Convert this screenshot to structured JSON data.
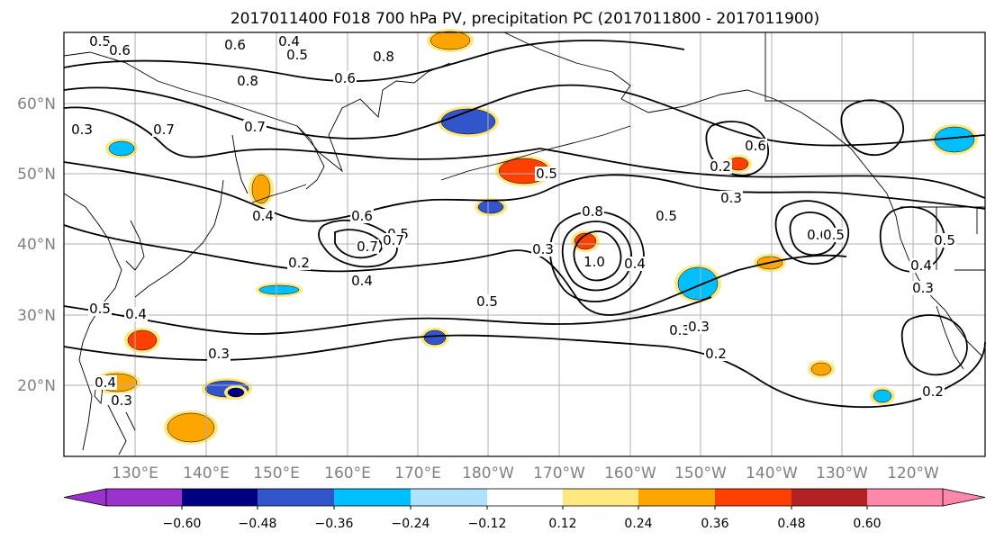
{
  "title": "2017011400 F018 700 hPa PV, precipitation PC (2017011800 - 2017011900)",
  "lat_labels": [
    "60°N",
    "50°N",
    "40°N",
    "30°N",
    "20°N"
  ],
  "lon_labels": [
    "130°E",
    "140°E",
    "150°E",
    "160°E",
    "170°E",
    "180°W",
    "170°W",
    "160°W",
    "150°W",
    "140°W",
    "130°W",
    "120°W"
  ],
  "colorbar": {
    "colors": [
      "#9933cc",
      "#000080",
      "#3355cc",
      "#00bfff",
      "#aee2ff",
      "#ffffff",
      "#ffe880",
      "#ffa500",
      "#ff4000",
      "#b22222",
      "#ff88aa"
    ],
    "tick_labels": [
      "−0.60",
      "−0.48",
      "−0.36",
      "−0.24",
      "−0.12",
      "0.12",
      "0.24",
      "0.36",
      "0.48",
      "0.60"
    ]
  },
  "contour_labels": [
    "0.5",
    "0.6",
    "0.6",
    "0.4",
    "0.5",
    "0.8",
    "0.6",
    "0.8",
    "0.7",
    "0.3",
    "0.7",
    "0.4",
    "0.6",
    "0.5",
    "0.7",
    "0.7",
    "0.3",
    "0.2",
    "0.4",
    "0.5",
    "0.4",
    "0.3",
    "0.8",
    "1.0",
    "0.4",
    "0.5",
    "0.3",
    "0.2",
    "0.3",
    "0.6",
    "0.5",
    "0.6",
    "0.5",
    "0.4",
    "0.3",
    "0.2",
    "0.5",
    "0.4",
    "0.3",
    "0.5",
    "0.3",
    "0.2"
  ],
  "precip_patches": [
    {
      "color": "#ffa500"
    },
    {
      "color": "#ff4000"
    },
    {
      "color": "#3355cc"
    },
    {
      "color": "#00bfff"
    },
    {
      "color": "#ffa500"
    },
    {
      "color": "#ff4000"
    },
    {
      "color": "#3355cc"
    },
    {
      "color": "#000080"
    },
    {
      "color": "#00bfff"
    },
    {
      "color": "#ffa500"
    },
    {
      "color": "#3355cc"
    },
    {
      "color": "#ffa500"
    },
    {
      "color": "#ff4000"
    },
    {
      "color": "#00bfff"
    },
    {
      "color": "#3355cc"
    },
    {
      "color": "#ffa500"
    },
    {
      "color": "#ff4000"
    },
    {
      "color": "#00bfff"
    },
    {
      "color": "#ffa500"
    },
    {
      "color": "#00bfff"
    }
  ]
}
